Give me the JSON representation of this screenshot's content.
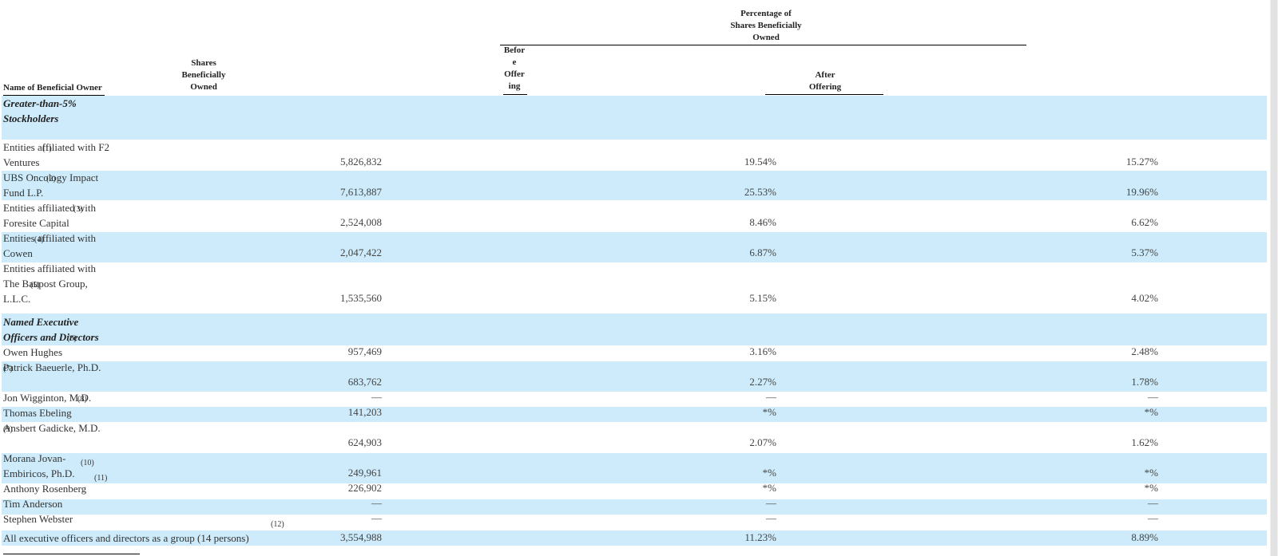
{
  "header": {
    "pct_group": "Percentage of Shares Beneficially Owned",
    "pct_line1": "Percentage of",
    "pct_line2": "Shares Beneficially",
    "pct_line3": "Owned",
    "before_1": "Befor",
    "before_2": "e",
    "before_3": "Offer",
    "before_4": "ing",
    "after_1": "After",
    "after_2": "Offering",
    "shares_1": "Shares",
    "shares_2": "Beneficially",
    "shares_3": "Owned",
    "name_col": "Name of Beneficial Owner"
  },
  "sections": {
    "greater": [
      "Greater-than-5%",
      "Stockholders"
    ],
    "named": [
      "Named Executive",
      "Officers and Directors"
    ]
  },
  "rows": [
    {
      "name_lines": [
        "Entities affiliated with F2",
        "Ventures"
      ],
      "note": "(1)",
      "shares": "5,826,832",
      "before": "19.54%",
      "after": "15.27%"
    },
    {
      "name_lines": [
        "UBS Oncology Impact",
        "Fund L.P."
      ],
      "note": "(2)",
      "shares": "7,613,887",
      "before": "25.53%",
      "after": "19.96%"
    },
    {
      "name_lines": [
        "Entities affiliated with",
        "Foresite Capital"
      ],
      "note": "(3)",
      "shares": "2,524,008",
      "before": "8.46%",
      "after": "6.62%"
    },
    {
      "name_lines": [
        "Entities affiliated with",
        "Cowen"
      ],
      "note": "(4)",
      "shares": "2,047,422",
      "before": "6.87%",
      "after": "5.37%"
    },
    {
      "name_lines": [
        "Entities affiliated with",
        "The Baupost Group,",
        "L.L.C."
      ],
      "note": "(5)",
      "shares": "1,535,560",
      "before": "5.15%",
      "after": "4.02%"
    },
    {
      "name_lines": [
        "Owen Hughes"
      ],
      "note": "(6)",
      "shares": "957,469",
      "before": "3.16%",
      "after": "2.48%"
    },
    {
      "name_lines": [
        "Patrick Baeuerle, Ph.D."
      ],
      "note": "(7)",
      "shares": "683,762",
      "before": "2.27%",
      "after": "1.78%"
    },
    {
      "name_lines": [
        "Jon Wigginton, M.D."
      ],
      "note": "(8)",
      "shares": "—",
      "before": "—",
      "after": "—"
    },
    {
      "name_lines": [
        "Thomas Ebeling"
      ],
      "note": "",
      "shares": "141,203",
      "before": "*%",
      "after": "*%"
    },
    {
      "name_lines": [
        "Ansbert Gadicke, M.D."
      ],
      "note": "(9)",
      "shares": "624,903",
      "before": "2.07%",
      "after": "1.62%"
    },
    {
      "name_lines": [
        "Morana Jovan-",
        "Embiricos, Ph.D."
      ],
      "note": "(10)",
      "note2": "(11)",
      "shares": "249,961",
      "before": "*%",
      "after": "*%"
    },
    {
      "name_lines": [
        "Anthony Rosenberg"
      ],
      "note": "",
      "shares": "226,902",
      "before": "*%",
      "after": "*%"
    },
    {
      "name_lines": [
        "Tim Anderson"
      ],
      "note": "",
      "shares": "—",
      "before": "—",
      "after": "—"
    },
    {
      "name_lines": [
        "Stephen Webster"
      ],
      "note": "(12)",
      "shares": "—",
      "before": "—",
      "after": "—"
    },
    {
      "name_lines": [
        "All executive officers and directors as a group (14 persons)"
      ],
      "note": "",
      "shares": "3,554,988",
      "before": "11.23%",
      "after": "8.89%"
    }
  ]
}
